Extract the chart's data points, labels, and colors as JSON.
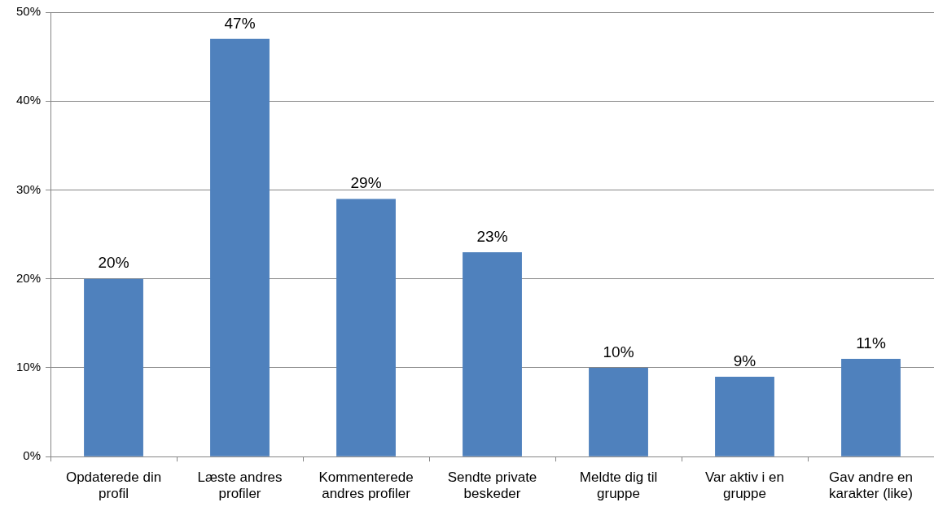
{
  "chart_data": {
    "type": "bar",
    "categories": [
      "Opdaterede din profil",
      "Læste andres profiler",
      "Kommenterede andres profiler",
      "Sendte private beskeder",
      "Meldte dig til gruppe",
      "Var aktiv i en gruppe",
      "Gav andre en karakter (like)"
    ],
    "values": [
      20,
      47,
      29,
      23,
      10,
      9,
      11
    ],
    "value_labels": [
      "20%",
      "47%",
      "29%",
      "23%",
      "10%",
      "9%",
      "11%"
    ],
    "color": "#4f81bd",
    "ylim": [
      0,
      50
    ],
    "yticks": [
      {
        "value": 0,
        "label": "0%"
      },
      {
        "value": 10,
        "label": "10%"
      },
      {
        "value": 20,
        "label": "20%"
      },
      {
        "value": 30,
        "label": "30%"
      },
      {
        "value": 40,
        "label": "40%"
      },
      {
        "value": 50,
        "label": "50%"
      }
    ],
    "grid": "y",
    "legend": false
  }
}
